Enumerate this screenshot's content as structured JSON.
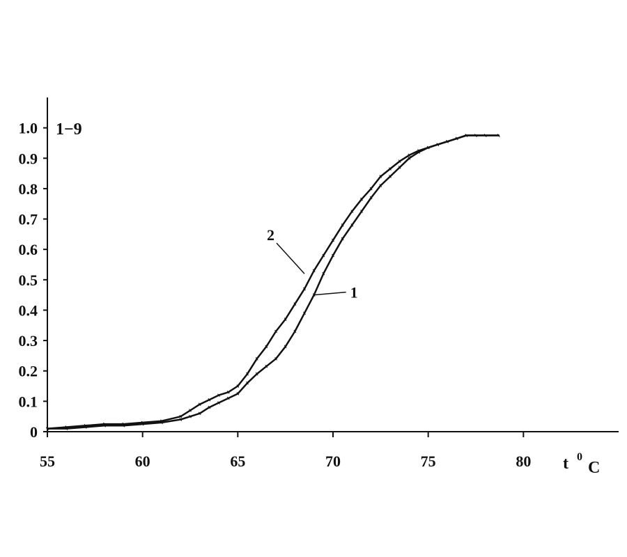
{
  "chart_data": {
    "type": "line",
    "title": "",
    "corner_label": "1−9",
    "xlabel": "t",
    "xlabel_sup": "0",
    "xlabel_unit": "C",
    "ylabel": "",
    "xlim": [
      55,
      85
    ],
    "ylim": [
      0,
      1.1
    ],
    "xticks": [
      55,
      60,
      65,
      70,
      75,
      80
    ],
    "xtick_labels": [
      "55",
      "60",
      "65",
      "70",
      "75",
      "80"
    ],
    "yticks": [
      0,
      0.1,
      0.2,
      0.3,
      0.4,
      0.5,
      0.6,
      0.7,
      0.8,
      0.9,
      1.0
    ],
    "ytick_labels": [
      "0",
      "0.1",
      "0.2",
      "0.3",
      "0.4",
      "0.5",
      "0.6",
      "0.7",
      "0.8",
      "0.9",
      "1.0"
    ],
    "grid": false,
    "series": [
      {
        "name": "1",
        "annotation_point": [
          69,
          0.45
        ],
        "x": [
          55.0,
          56.0,
          57.0,
          58.0,
          59.0,
          60.0,
          61.0,
          62.0,
          62.5,
          63.0,
          63.5,
          64.0,
          64.5,
          65.0,
          65.5,
          66.0,
          66.5,
          67.0,
          67.5,
          68.0,
          68.5,
          69.0,
          69.5,
          70.0,
          70.5,
          71.0,
          71.5,
          72.0,
          72.5,
          73.0,
          73.5,
          74.0,
          74.5,
          75.0,
          75.5,
          76.0,
          76.5,
          77.0,
          77.5,
          78.0,
          78.7
        ],
        "y": [
          0.01,
          0.01,
          0.015,
          0.02,
          0.02,
          0.025,
          0.03,
          0.04,
          0.05,
          0.06,
          0.08,
          0.095,
          0.11,
          0.125,
          0.16,
          0.19,
          0.215,
          0.24,
          0.28,
          0.33,
          0.39,
          0.45,
          0.52,
          0.58,
          0.635,
          0.68,
          0.725,
          0.77,
          0.81,
          0.84,
          0.87,
          0.9,
          0.92,
          0.935,
          0.945,
          0.955,
          0.965,
          0.975,
          0.975,
          0.975,
          0.975
        ]
      },
      {
        "name": "2",
        "annotation_point": [
          68.5,
          0.52
        ],
        "x": [
          55.0,
          56.0,
          57.0,
          58.0,
          59.0,
          60.0,
          61.0,
          62.0,
          62.5,
          63.0,
          63.5,
          64.0,
          64.5,
          65.0,
          65.5,
          66.0,
          66.5,
          67.0,
          67.5,
          68.0,
          68.5,
          69.0,
          69.5,
          70.0,
          70.5,
          71.0,
          71.5,
          72.0,
          72.5,
          73.0,
          73.5,
          74.0,
          74.5,
          75.0,
          75.5,
          76.0,
          76.5,
          77.0,
          77.5,
          78.0,
          78.7
        ],
        "y": [
          0.01,
          0.015,
          0.02,
          0.025,
          0.025,
          0.03,
          0.035,
          0.05,
          0.07,
          0.09,
          0.105,
          0.12,
          0.13,
          0.15,
          0.19,
          0.24,
          0.28,
          0.33,
          0.37,
          0.42,
          0.47,
          0.53,
          0.58,
          0.63,
          0.68,
          0.725,
          0.765,
          0.8,
          0.84,
          0.865,
          0.89,
          0.91,
          0.925,
          0.935,
          0.945,
          0.955,
          0.965,
          0.975,
          0.975,
          0.975,
          0.975
        ]
      }
    ]
  }
}
